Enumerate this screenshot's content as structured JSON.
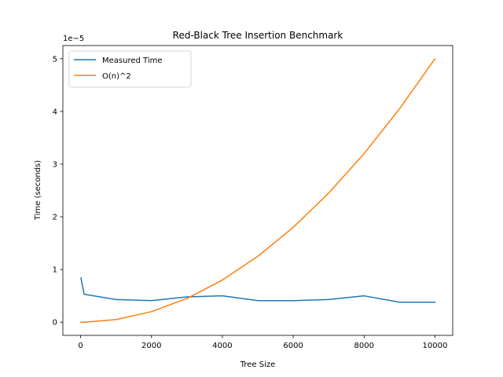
{
  "chart_data": {
    "type": "line",
    "title": "Red-Black Tree Insertion Benchmark",
    "xlabel": "Tree Size",
    "ylabel": "Time (seconds)",
    "y_offset_label": "1e−5",
    "xlim": [
      -500,
      10500
    ],
    "ylim": [
      -2.5e-06,
      5.25e-05
    ],
    "x_ticks": [
      0,
      2000,
      4000,
      6000,
      8000,
      10000
    ],
    "x_tick_labels": [
      "0",
      "2000",
      "4000",
      "6000",
      "8000",
      "10000"
    ],
    "y_ticks": [
      0,
      1e-05,
      2e-05,
      3e-05,
      4e-05,
      5e-05
    ],
    "y_tick_labels": [
      "0",
      "1",
      "2",
      "3",
      "4",
      "5"
    ],
    "grid": false,
    "legend_placement": "top-left",
    "series": [
      {
        "name": "Measured Time",
        "color": "#1f77b4",
        "x": [
          10,
          100,
          1000,
          2000,
          3000,
          4000,
          5000,
          6000,
          7000,
          8000,
          9000,
          10000
        ],
        "y": [
          8.4e-06,
          5.3e-06,
          4.3e-06,
          4.1e-06,
          4.8e-06,
          5e-06,
          4.1e-06,
          4.1e-06,
          4.3e-06,
          5e-06,
          3.8e-06,
          3.8e-06
        ]
      },
      {
        "name": "O(n)^2",
        "color": "#ff7f0e",
        "x": [
          10,
          100,
          1000,
          2000,
          3000,
          4000,
          5000,
          6000,
          7000,
          8000,
          9000,
          10000
        ],
        "y": [
          5e-13,
          5e-11,
          5e-07,
          2e-06,
          4.5e-06,
          8e-06,
          1.25e-05,
          1.8e-05,
          2.45e-05,
          3.2e-05,
          4.05e-05,
          5e-05
        ]
      }
    ]
  }
}
